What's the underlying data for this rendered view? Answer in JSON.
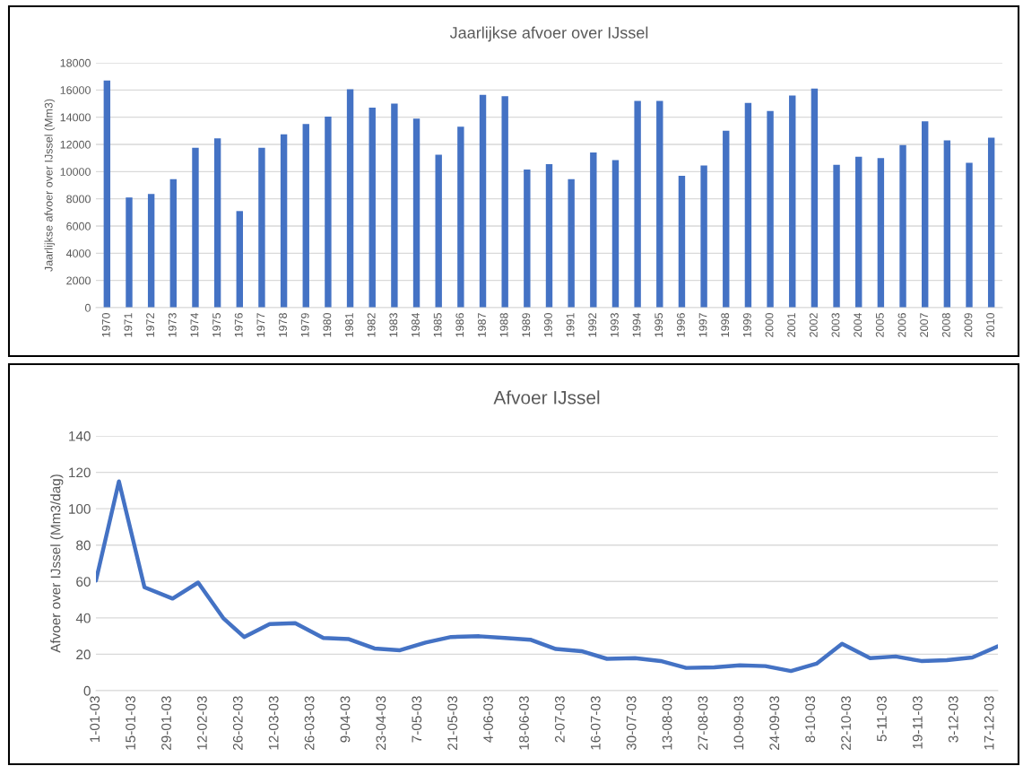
{
  "chart_data": [
    {
      "type": "bar",
      "title": "Jaarlijkse afvoer over IJssel",
      "ylabel": "Jaarlijkse afvoer over IJssel (Mm3)",
      "categories": [
        "1970",
        "1971",
        "1972",
        "1973",
        "1974",
        "1975",
        "1976",
        "1977",
        "1978",
        "1979",
        "1980",
        "1981",
        "1982",
        "1983",
        "1984",
        "1985",
        "1986",
        "1987",
        "1988",
        "1989",
        "1990",
        "1991",
        "1992",
        "1993",
        "1994",
        "1995",
        "1996",
        "1997",
        "1998",
        "1999",
        "2000",
        "2001",
        "2002",
        "2003",
        "2004",
        "2005",
        "2006",
        "2007",
        "2008",
        "2009",
        "2010"
      ],
      "series": [
        {
          "color": "#4472c4",
          "values": [
            16700,
            8100,
            8350,
            9450,
            11750,
            12450,
            7100,
            11750,
            12750,
            13500,
            14050,
            16050,
            14700,
            15000,
            13900,
            11250,
            13300,
            15650,
            15550,
            10150,
            10550,
            9450,
            11400,
            10850,
            15200,
            15200,
            9700,
            10450,
            13000,
            15050,
            14450,
            15600,
            16100,
            10500,
            11100,
            11000,
            11950,
            13700,
            12300,
            10650,
            12500
          ]
        }
      ],
      "ylim": [
        0,
        18000
      ],
      "yticks": [
        0,
        2000,
        4000,
        6000,
        8000,
        10000,
        12000,
        14000,
        16000,
        18000
      ],
      "grid": "y"
    },
    {
      "type": "line",
      "title": "Afvoer IJssel",
      "ylabel": "Afvoer over IJssel (Mm3/dag)",
      "x": [
        "2003-01-01",
        "2003-01-10",
        "2003-01-20",
        "2003-01-31",
        "2003-02-10",
        "2003-02-20",
        "2003-02-28",
        "2003-03-10",
        "2003-03-20",
        "2003-03-31",
        "2003-04-10",
        "2003-04-20",
        "2003-04-30",
        "2003-05-10",
        "2003-05-20",
        "2003-05-31",
        "2003-06-10",
        "2003-06-20",
        "2003-06-30",
        "2003-07-10",
        "2003-07-20",
        "2003-07-31",
        "2003-08-10",
        "2003-08-20",
        "2003-08-31",
        "2003-09-10",
        "2003-09-20",
        "2003-09-30",
        "2003-10-10",
        "2003-10-20",
        "2003-10-31",
        "2003-11-10",
        "2003-11-20",
        "2003-11-30",
        "2003-12-10",
        "2003-12-20"
      ],
      "series": [
        {
          "color": "#4472c4",
          "values": [
            60.5,
            115,
            56.8,
            50.6,
            59.4,
            39.6,
            29.5,
            36.6,
            37.1,
            29,
            28.3,
            23.2,
            22.2,
            26.4,
            29.5,
            29.9,
            29,
            28,
            22.9,
            21.7,
            17.5,
            17.9,
            16.3,
            12.5,
            12.8,
            13.9,
            13.5,
            10.8,
            14.8,
            25.8,
            17.9,
            18.8,
            16.3,
            16.8,
            18.2,
            24.4
          ]
        }
      ],
      "xlim": [
        "2003-01-01",
        "2003-12-20"
      ],
      "xticks": [
        {
          "value": "2003-01-01",
          "label": "1-01-03"
        },
        {
          "value": "2003-01-15",
          "label": "15-01-03"
        },
        {
          "value": "2003-01-29",
          "label": "29-01-03"
        },
        {
          "value": "2003-02-12",
          "label": "12-02-03"
        },
        {
          "value": "2003-02-26",
          "label": "26-02-03"
        },
        {
          "value": "2003-03-12",
          "label": "12-03-03"
        },
        {
          "value": "2003-03-26",
          "label": "26-03-03"
        },
        {
          "value": "2003-04-09",
          "label": "9-04-03"
        },
        {
          "value": "2003-04-23",
          "label": "23-04-03"
        },
        {
          "value": "2003-05-07",
          "label": "7-05-03"
        },
        {
          "value": "2003-05-21",
          "label": "21-05-03"
        },
        {
          "value": "2003-06-04",
          "label": "4-06-03"
        },
        {
          "value": "2003-06-18",
          "label": "18-06-03"
        },
        {
          "value": "2003-07-02",
          "label": "2-07-03"
        },
        {
          "value": "2003-07-16",
          "label": "16-07-03"
        },
        {
          "value": "2003-07-30",
          "label": "30-07-03"
        },
        {
          "value": "2003-08-13",
          "label": "13-08-03"
        },
        {
          "value": "2003-08-27",
          "label": "27-08-03"
        },
        {
          "value": "2003-09-10",
          "label": "10-09-03"
        },
        {
          "value": "2003-09-24",
          "label": "24-09-03"
        },
        {
          "value": "2003-10-08",
          "label": "8-10-03"
        },
        {
          "value": "2003-10-22",
          "label": "22-10-03"
        },
        {
          "value": "2003-11-05",
          "label": "5-11-03"
        },
        {
          "value": "2003-11-19",
          "label": "19-11-03"
        },
        {
          "value": "2003-12-03",
          "label": "3-12-03"
        },
        {
          "value": "2003-12-17",
          "label": "17-12-03"
        }
      ],
      "ylim": [
        0,
        140
      ],
      "yticks": [
        0,
        20,
        40,
        60,
        80,
        100,
        120,
        140
      ],
      "grid": "y",
      "marker": "none",
      "line_style": "solid"
    }
  ]
}
